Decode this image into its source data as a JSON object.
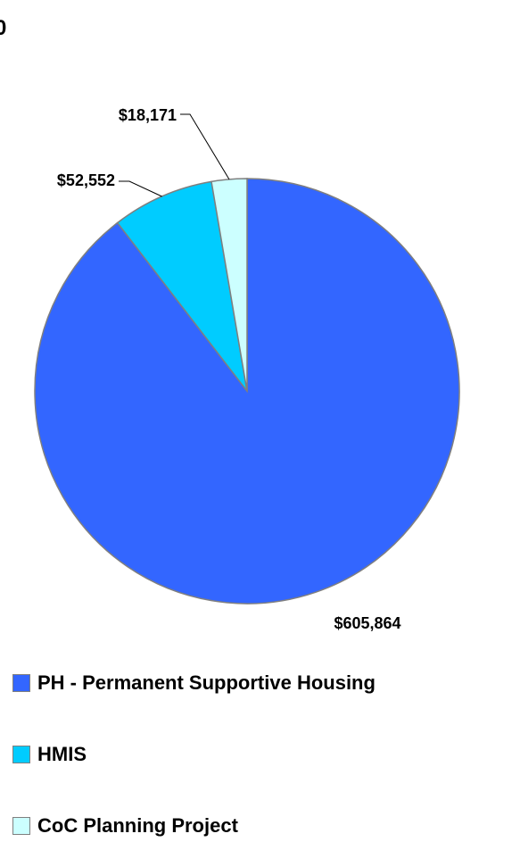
{
  "corner_glyph": "0",
  "chart_data": {
    "type": "pie",
    "title": "",
    "slices": [
      {
        "label": "PH - Permanent Supportive Housing",
        "value": 605864,
        "value_label": "$605,864",
        "color": "#3366ff"
      },
      {
        "label": "HMIS",
        "value": 52552,
        "value_label": "$52,552",
        "color": "#00ccff"
      },
      {
        "label": "CoC Planning Project",
        "value": 18171,
        "value_label": "$18,171",
        "color": "#ccffff"
      }
    ],
    "legend_position": "bottom",
    "slice_border_color": "#7f7f7f"
  }
}
